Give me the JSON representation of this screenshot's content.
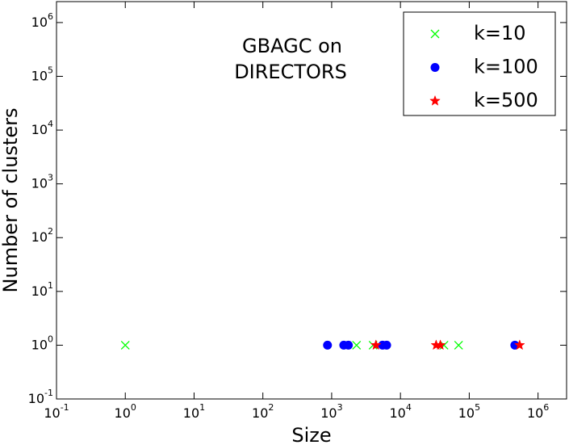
{
  "chart_data": {
    "type": "scatter",
    "title_lines": [
      "GBAGC on",
      "DIRECTORS"
    ],
    "x_label": "Size",
    "y_label": "Number of clusters",
    "xscale": "log",
    "yscale": "log",
    "xlim": [
      0.1,
      2600000
    ],
    "ylim": [
      0.1,
      2450000
    ],
    "xticks": [
      {
        "value": 0.1,
        "label": "10^-1"
      },
      {
        "value": 1,
        "label": "10^0"
      },
      {
        "value": 10,
        "label": "10^1"
      },
      {
        "value": 100,
        "label": "10^2"
      },
      {
        "value": 1000,
        "label": "10^3"
      },
      {
        "value": 10000,
        "label": "10^4"
      },
      {
        "value": 100000,
        "label": "10^5"
      },
      {
        "value": 1000000,
        "label": "10^6"
      }
    ],
    "yticks": [
      {
        "value": 0.1,
        "label": "10^-1"
      },
      {
        "value": 1,
        "label": "10^0"
      },
      {
        "value": 10,
        "label": "10^1"
      },
      {
        "value": 100,
        "label": "10^2"
      },
      {
        "value": 1000,
        "label": "10^3"
      },
      {
        "value": 10000,
        "label": "10^4"
      },
      {
        "value": 100000,
        "label": "10^5"
      },
      {
        "value": 1000000,
        "label": "10^6"
      }
    ],
    "legend_position": "upper right",
    "series": [
      {
        "name": "k=10",
        "color": "#00ff00",
        "marker": "x",
        "x": [
          1,
          2300,
          4000,
          43000,
          70000
        ],
        "values": [
          1,
          1,
          1,
          1,
          1
        ]
      },
      {
        "name": "k=100",
        "color": "#0000ff",
        "marker": "circle",
        "x": [
          870,
          1500,
          1750,
          5500,
          6300,
          460000
        ],
        "values": [
          1,
          1,
          1,
          1,
          1,
          1
        ]
      },
      {
        "name": "k=500",
        "color": "#ff0000",
        "marker": "star",
        "x": [
          4400,
          33000,
          38000,
          540000
        ],
        "values": [
          1,
          1,
          1,
          1
        ]
      }
    ]
  }
}
